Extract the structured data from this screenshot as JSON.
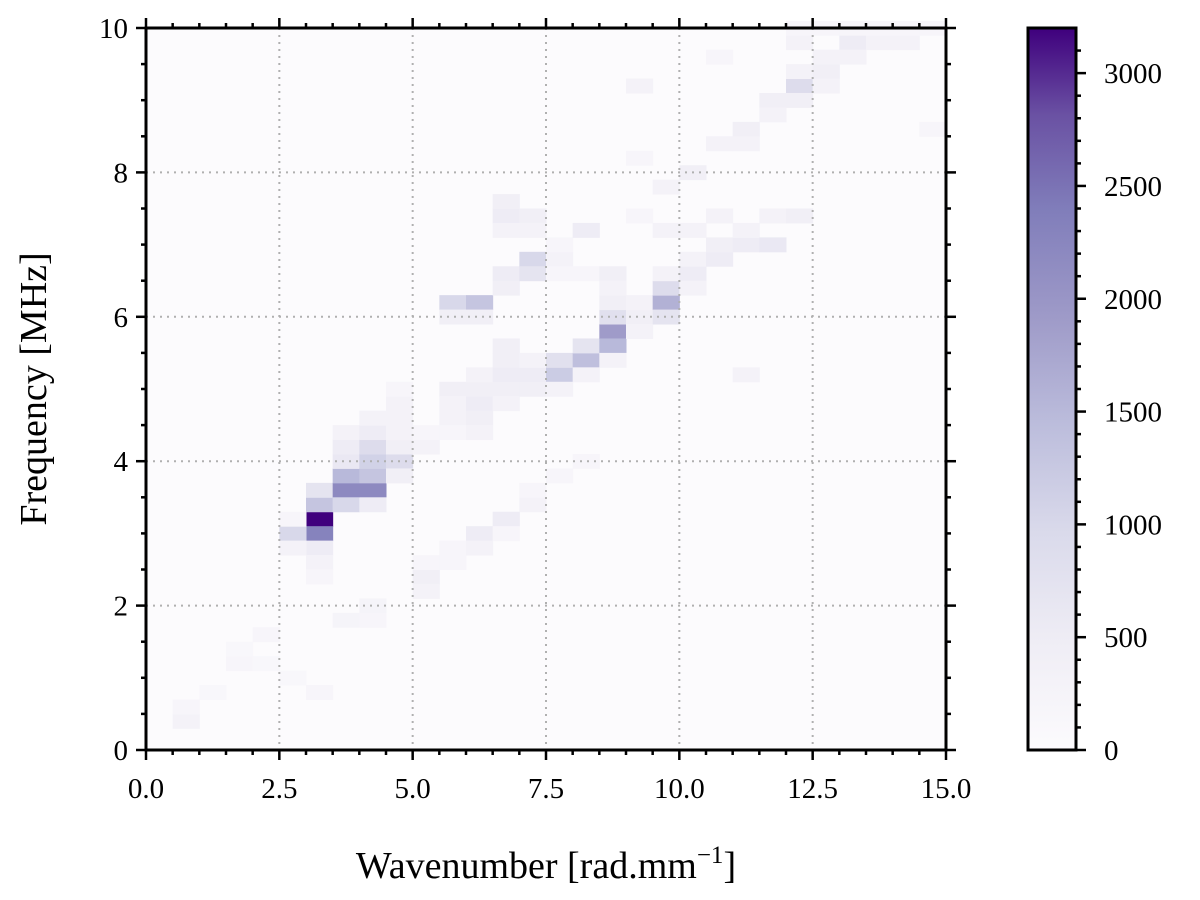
{
  "chart_data": {
    "type": "heatmap",
    "xlabel": "Wavenumber [rad.mm",
    "xlabel_sup": "−1",
    "xlabel_end": "]",
    "ylabel": "Frequency [MHz]",
    "xlim": [
      0,
      15
    ],
    "ylim": [
      0,
      10
    ],
    "xticks": [
      "0.0",
      "2.5",
      "5.0",
      "7.5",
      "10.0",
      "12.5",
      "15.0"
    ],
    "yticks": [
      "0",
      "2",
      "4",
      "6",
      "8",
      "10"
    ],
    "grid": true,
    "colorbar": {
      "min": 0,
      "max": 3200,
      "ticks": [
        "0",
        "500",
        "1000",
        "1500",
        "2000",
        "2500",
        "3000"
      ],
      "colormap": "Purples",
      "color_low": "#fcfbfd",
      "color_high": "#3f007d"
    },
    "bin_size": {
      "dx": 0.5,
      "dy": 0.2
    },
    "cells": [
      [
        3.0,
        3.1,
        3200
      ],
      [
        3.0,
        2.9,
        2300
      ],
      [
        3.0,
        3.3,
        1300
      ],
      [
        3.0,
        3.5,
        700
      ],
      [
        3.0,
        2.7,
        500
      ],
      [
        3.0,
        2.5,
        300
      ],
      [
        3.0,
        2.3,
        200
      ],
      [
        2.5,
        2.9,
        1000
      ],
      [
        2.5,
        2.7,
        300
      ],
      [
        2.5,
        3.1,
        200
      ],
      [
        3.5,
        3.5,
        2200
      ],
      [
        3.5,
        3.3,
        1000
      ],
      [
        3.5,
        3.7,
        1500
      ],
      [
        3.5,
        3.9,
        600
      ],
      [
        3.5,
        4.1,
        500
      ],
      [
        3.5,
        4.3,
        300
      ],
      [
        4.0,
        3.5,
        2200
      ],
      [
        4.0,
        3.7,
        1300
      ],
      [
        4.0,
        3.9,
        1100
      ],
      [
        4.0,
        4.1,
        900
      ],
      [
        4.0,
        4.3,
        500
      ],
      [
        4.0,
        3.3,
        500
      ],
      [
        4.0,
        4.5,
        300
      ],
      [
        4.5,
        3.9,
        900
      ],
      [
        4.5,
        3.7,
        400
      ],
      [
        4.5,
        4.1,
        400
      ],
      [
        4.5,
        4.3,
        300
      ],
      [
        4.5,
        4.5,
        300
      ],
      [
        4.5,
        4.7,
        300
      ],
      [
        4.5,
        4.9,
        200
      ],
      [
        5.0,
        4.1,
        300
      ],
      [
        5.0,
        4.3,
        200
      ],
      [
        5.0,
        2.3,
        400
      ],
      [
        5.0,
        2.1,
        300
      ],
      [
        5.0,
        2.5,
        200
      ],
      [
        5.5,
        6.1,
        1000
      ],
      [
        5.5,
        5.9,
        400
      ],
      [
        5.5,
        4.9,
        400
      ],
      [
        5.5,
        4.7,
        300
      ],
      [
        5.5,
        4.5,
        300
      ],
      [
        5.5,
        4.3,
        200
      ],
      [
        5.5,
        2.7,
        200
      ],
      [
        5.5,
        2.5,
        200
      ],
      [
        6.0,
        6.1,
        1300
      ],
      [
        6.0,
        4.7,
        500
      ],
      [
        6.0,
        4.5,
        400
      ],
      [
        6.0,
        4.9,
        400
      ],
      [
        6.0,
        4.3,
        300
      ],
      [
        6.0,
        5.9,
        400
      ],
      [
        6.0,
        2.9,
        500
      ],
      [
        6.0,
        2.7,
        300
      ],
      [
        6.0,
        5.1,
        300
      ],
      [
        6.5,
        5.1,
        500
      ],
      [
        6.5,
        4.9,
        400
      ],
      [
        6.5,
        5.3,
        400
      ],
      [
        6.5,
        4.7,
        300
      ],
      [
        6.5,
        6.5,
        500
      ],
      [
        6.5,
        6.3,
        400
      ],
      [
        6.5,
        7.3,
        500
      ],
      [
        6.5,
        7.5,
        400
      ],
      [
        6.5,
        7.1,
        300
      ],
      [
        6.5,
        3.1,
        500
      ],
      [
        6.5,
        2.9,
        200
      ],
      [
        6.5,
        5.5,
        400
      ],
      [
        7.0,
        6.7,
        1000
      ],
      [
        7.0,
        6.5,
        700
      ],
      [
        7.0,
        5.1,
        500
      ],
      [
        7.0,
        4.9,
        400
      ],
      [
        7.0,
        7.3,
        400
      ],
      [
        7.0,
        7.1,
        300
      ],
      [
        7.0,
        3.3,
        300
      ],
      [
        7.0,
        3.5,
        200
      ],
      [
        7.0,
        5.3,
        300
      ],
      [
        7.5,
        5.1,
        1200
      ],
      [
        7.5,
        5.3,
        800
      ],
      [
        7.5,
        4.9,
        300
      ],
      [
        7.5,
        6.7,
        300
      ],
      [
        7.5,
        6.5,
        200
      ],
      [
        7.5,
        6.9,
        200
      ],
      [
        7.5,
        3.7,
        200
      ],
      [
        8.0,
        5.3,
        1400
      ],
      [
        8.0,
        5.5,
        700
      ],
      [
        8.0,
        7.1,
        500
      ],
      [
        8.0,
        6.5,
        200
      ],
      [
        8.0,
        5.1,
        300
      ],
      [
        8.0,
        3.9,
        200
      ],
      [
        8.5,
        5.7,
        1900
      ],
      [
        8.5,
        5.5,
        1500
      ],
      [
        8.5,
        5.9,
        800
      ],
      [
        8.5,
        6.1,
        400
      ],
      [
        8.5,
        6.5,
        400
      ],
      [
        8.5,
        6.3,
        300
      ],
      [
        8.5,
        5.3,
        300
      ],
      [
        9.0,
        5.9,
        400
      ],
      [
        9.0,
        6.1,
        300
      ],
      [
        9.0,
        9.1,
        300
      ],
      [
        9.0,
        8.1,
        200
      ],
      [
        9.0,
        7.3,
        200
      ],
      [
        9.0,
        5.7,
        300
      ],
      [
        9.5,
        6.1,
        1600
      ],
      [
        9.5,
        5.9,
        700
      ],
      [
        9.5,
        6.3,
        900
      ],
      [
        9.5,
        7.7,
        300
      ],
      [
        9.5,
        7.1,
        300
      ],
      [
        9.5,
        6.5,
        300
      ],
      [
        10.0,
        6.5,
        500
      ],
      [
        10.0,
        6.7,
        300
      ],
      [
        10.0,
        7.9,
        400
      ],
      [
        10.0,
        6.3,
        300
      ],
      [
        10.0,
        7.1,
        300
      ],
      [
        10.5,
        6.7,
        500
      ],
      [
        10.5,
        6.9,
        400
      ],
      [
        10.5,
        8.3,
        300
      ],
      [
        10.5,
        7.3,
        300
      ],
      [
        10.5,
        9.5,
        200
      ],
      [
        11.0,
        6.9,
        500
      ],
      [
        11.0,
        8.5,
        400
      ],
      [
        11.0,
        8.3,
        300
      ],
      [
        11.0,
        7.1,
        300
      ],
      [
        11.0,
        5.1,
        300
      ],
      [
        11.5,
        6.9,
        600
      ],
      [
        11.5,
        7.3,
        300
      ],
      [
        11.5,
        8.9,
        400
      ],
      [
        11.5,
        8.7,
        300
      ],
      [
        12.0,
        9.1,
        900
      ],
      [
        12.0,
        8.9,
        400
      ],
      [
        12.0,
        9.3,
        300
      ],
      [
        12.0,
        7.3,
        400
      ],
      [
        12.0,
        9.7,
        300
      ],
      [
        12.0,
        9.9,
        200
      ],
      [
        12.5,
        9.3,
        400
      ],
      [
        12.5,
        9.5,
        300
      ],
      [
        12.5,
        9.1,
        300
      ],
      [
        12.5,
        9.9,
        200
      ],
      [
        13.0,
        9.7,
        500
      ],
      [
        13.0,
        9.5,
        300
      ],
      [
        13.0,
        9.9,
        200
      ],
      [
        13.5,
        9.7,
        300
      ],
      [
        13.5,
        9.9,
        200
      ],
      [
        14.0,
        9.7,
        300
      ],
      [
        14.0,
        9.9,
        200
      ],
      [
        14.5,
        9.9,
        200
      ],
      [
        14.5,
        8.5,
        200
      ],
      [
        1.5,
        1.1,
        200
      ],
      [
        1.5,
        1.3,
        150
      ],
      [
        1.0,
        0.7,
        150
      ],
      [
        0.5,
        0.3,
        300
      ],
      [
        0.5,
        0.5,
        200
      ],
      [
        2.0,
        1.5,
        200
      ],
      [
        2.0,
        1.1,
        150
      ],
      [
        3.5,
        1.7,
        250
      ],
      [
        4.0,
        1.9,
        250
      ],
      [
        4.0,
        1.7,
        200
      ],
      [
        2.5,
        0.9,
        150
      ],
      [
        3.0,
        0.7,
        200
      ]
    ]
  }
}
